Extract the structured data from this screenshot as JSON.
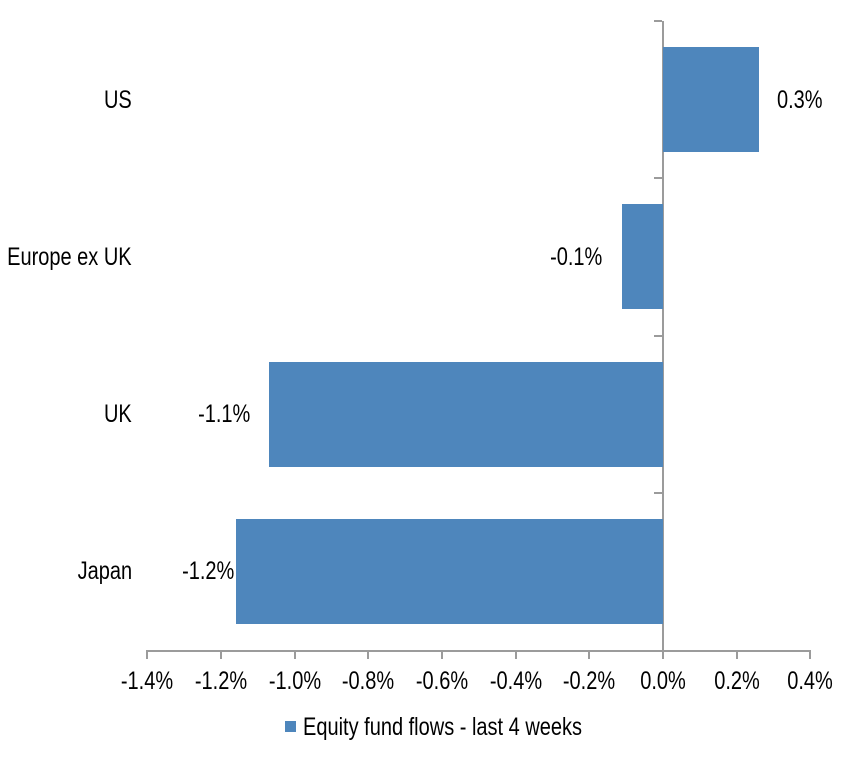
{
  "chart_data": {
    "type": "bar",
    "orientation": "horizontal",
    "title": "",
    "xlabel": "",
    "ylabel": "",
    "categories": [
      "US",
      "Europe ex UK",
      "UK",
      "Japan"
    ],
    "values": [
      0.3,
      -0.1,
      -1.1,
      -1.2
    ],
    "values_plotted_estimate": [
      0.26,
      -0.11,
      -1.07,
      -1.16
    ],
    "data_labels": [
      "0.3%",
      "-0.1%",
      "-1.1%",
      "-1.2%"
    ],
    "x_ticks": [
      -1.4,
      -1.2,
      -1.0,
      -0.8,
      -0.6,
      -0.4,
      -0.2,
      0.0,
      0.2,
      0.4
    ],
    "x_tick_labels": [
      "-1.4%",
      "-1.2%",
      "-1.0%",
      "-0.8%",
      "-0.6%",
      "-0.4%",
      "-0.2%",
      "0.0%",
      "0.2%",
      "0.4%"
    ],
    "xlim": [
      -1.4,
      0.4
    ],
    "unit": "%",
    "grid": false,
    "legend_label": "Equity fund flows - last 4 weeks",
    "legend_position": "bottom",
    "colors": {
      "bar": "#4E86BC",
      "axis": "#9B9B9B",
      "text": "#000000",
      "background": "#FFFFFF"
    }
  }
}
